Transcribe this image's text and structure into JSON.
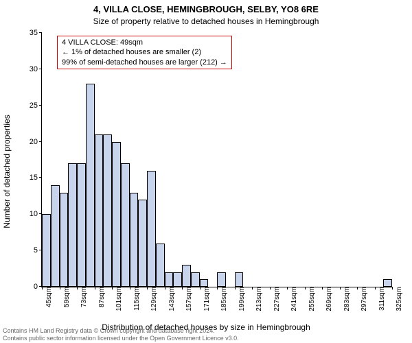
{
  "title": "4, VILLA CLOSE, HEMINGBROUGH, SELBY, YO8 6RE",
  "subtitle": "Size of property relative to detached houses in Hemingbrough",
  "ylabel": "Number of detached properties",
  "xlabel": "Distribution of detached houses by size in Hemingbrough",
  "chart": {
    "type": "histogram",
    "ylim": [
      0,
      35
    ],
    "yticks": [
      0,
      5,
      10,
      15,
      20,
      25,
      30,
      35
    ],
    "xticks": [
      "45sqm",
      "59sqm",
      "73sqm",
      "87sqm",
      "101sqm",
      "115sqm",
      "129sqm",
      "143sqm",
      "157sqm",
      "171sqm",
      "185sqm",
      "199sqm",
      "213sqm",
      "227sqm",
      "241sqm",
      "255sqm",
      "269sqm",
      "283sqm",
      "297sqm",
      "311sqm",
      "325sqm"
    ],
    "bar_color": "#c8d4ec",
    "bar_border": "#000000",
    "background_color": "#ffffff",
    "values": [
      10,
      14,
      13,
      17,
      17,
      28,
      21,
      21,
      20,
      17,
      13,
      12,
      16,
      6,
      2,
      2,
      3,
      2,
      1,
      0,
      2,
      0,
      2,
      0,
      0,
      0,
      0,
      0,
      0,
      0,
      0,
      0,
      0,
      0,
      0,
      0,
      0,
      0,
      0,
      1
    ],
    "bar_count": 40
  },
  "annotation": {
    "line1": "4 VILLA CLOSE: 49sqm",
    "line2": "← 1% of detached houses are smaller (2)",
    "line3": "99% of semi-detached houses are larger (212) →",
    "border_color": "#cc0000"
  },
  "attribution": {
    "line1": "Contains HM Land Registry data © Crown copyright and database right 2024.",
    "line2": "Contains public sector information licensed under the Open Government Licence v3.0."
  }
}
